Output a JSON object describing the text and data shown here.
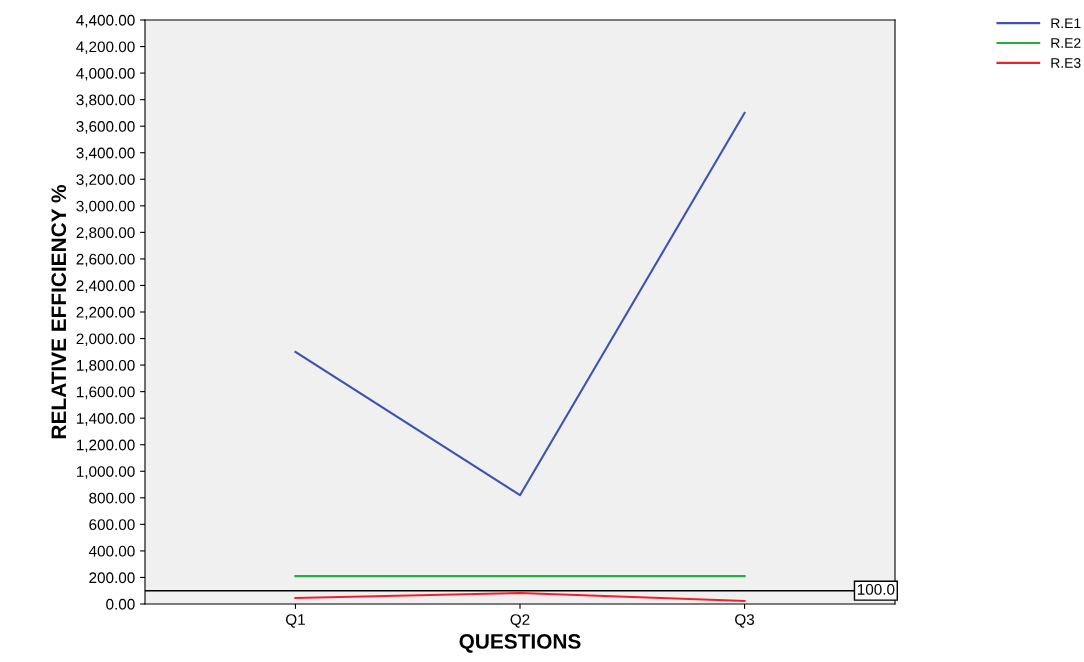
{
  "chart_data": {
    "type": "line",
    "xlabel": "QUESTIONS",
    "ylabel": "RELATIVE EFFICIENCY %",
    "categories": [
      "Q1",
      "Q2",
      "Q3"
    ],
    "series": [
      {
        "name": "R.E1",
        "color": "#3f51b1",
        "values": [
          1900,
          820,
          3700
        ]
      },
      {
        "name": "R.E2",
        "color": "#20b040",
        "values": [
          210,
          210,
          210
        ]
      },
      {
        "name": "R.E3",
        "color": "#f0202a",
        "values": [
          45,
          83,
          23
        ]
      }
    ],
    "ylim": [
      0,
      4400
    ],
    "yticks": [
      {
        "value": 0,
        "label": "0.00"
      },
      {
        "value": 200,
        "label": "200.00"
      },
      {
        "value": 400,
        "label": "400.00"
      },
      {
        "value": 600,
        "label": "600.00"
      },
      {
        "value": 800,
        "label": "800.00"
      },
      {
        "value": 1000,
        "label": "1,000.00"
      },
      {
        "value": 1200,
        "label": "1,200.00"
      },
      {
        "value": 1400,
        "label": "1,400.00"
      },
      {
        "value": 1600,
        "label": "1,600.00"
      },
      {
        "value": 1800,
        "label": "1,800.00"
      },
      {
        "value": 2000,
        "label": "2,000.00"
      },
      {
        "value": 2200,
        "label": "2,200.00"
      },
      {
        "value": 2400,
        "label": "2,400.00"
      },
      {
        "value": 2600,
        "label": "2,600.00"
      },
      {
        "value": 2800,
        "label": "2,800.00"
      },
      {
        "value": 3000,
        "label": "3,000.00"
      },
      {
        "value": 3200,
        "label": "3,200.00"
      },
      {
        "value": 3400,
        "label": "3,400.00"
      },
      {
        "value": 3600,
        "label": "3,600.00"
      },
      {
        "value": 3800,
        "label": "3,800.00"
      },
      {
        "value": 4000,
        "label": "4,000.00"
      },
      {
        "value": 4200,
        "label": "4,200.00"
      },
      {
        "value": 4400,
        "label": "4,400.00"
      }
    ],
    "ref_lines": [
      {
        "axis": "y",
        "value": 100,
        "label": "100.0",
        "color": "#000000"
      }
    ],
    "grid": false,
    "legend": "top right",
    "marker": "none",
    "line_style": "solid"
  }
}
